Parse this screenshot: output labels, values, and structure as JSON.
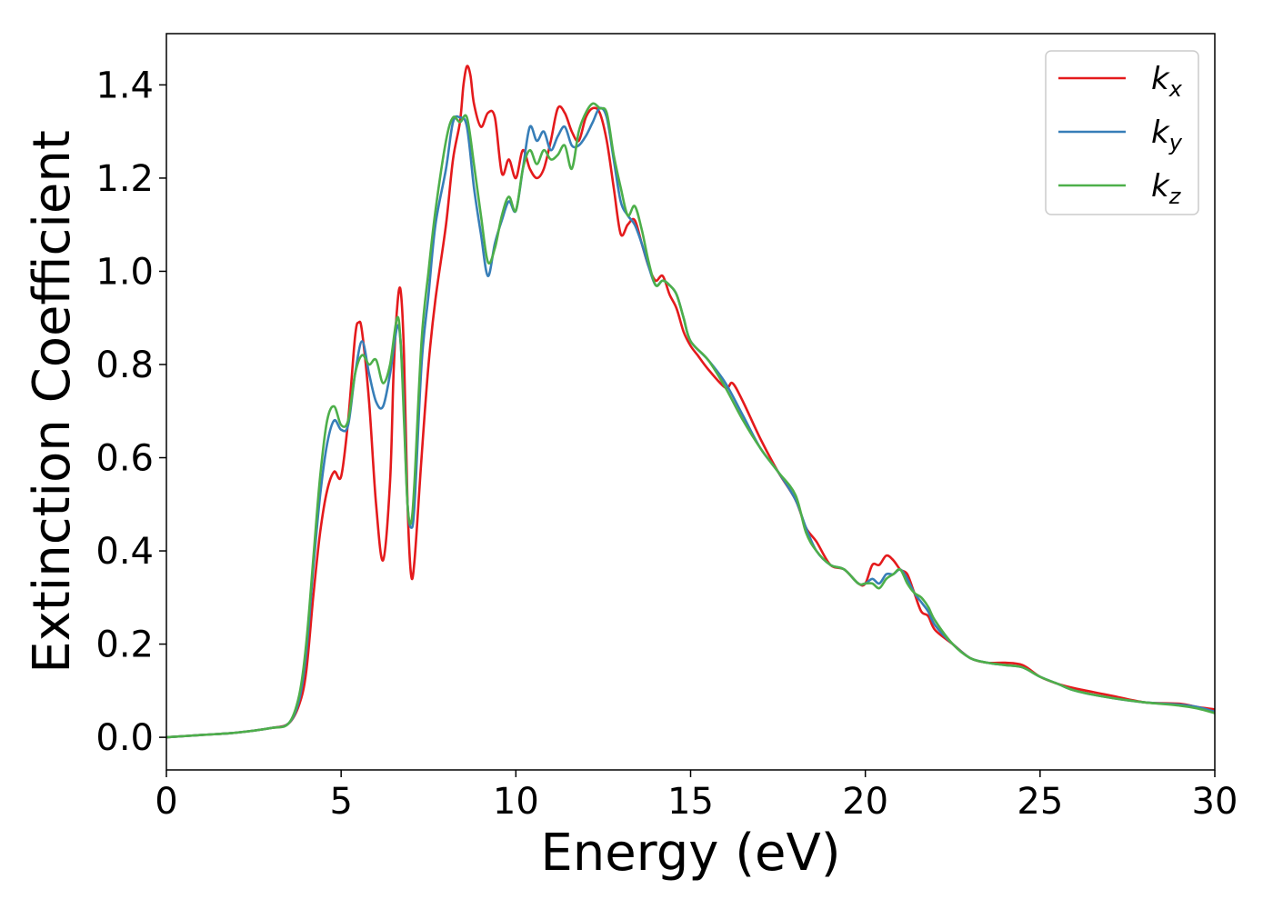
{
  "chart_data": {
    "type": "line",
    "xlabel": "Energy (eV)",
    "ylabel": "Extinction Coefficient",
    "xlim": [
      0,
      30
    ],
    "ylim": [
      -0.07,
      1.51
    ],
    "x_ticks": [
      "0",
      "5",
      "10",
      "15",
      "20",
      "25",
      "30"
    ],
    "y_ticks": [
      "0.0",
      "0.2",
      "0.4",
      "0.6",
      "0.8",
      "1.0",
      "1.2",
      "1.4"
    ],
    "grid": false,
    "legend_position": "top-right",
    "series": [
      {
        "name": "k",
        "subscript": "x",
        "color": "#e41a1c",
        "x": [
          0,
          1,
          2,
          3,
          3.5,
          3.8,
          4.0,
          4.2,
          4.4,
          4.6,
          4.8,
          5.0,
          5.2,
          5.4,
          5.5,
          5.6,
          5.8,
          6.0,
          6.2,
          6.4,
          6.5,
          6.6,
          6.7,
          6.8,
          6.9,
          7.0,
          7.1,
          7.3,
          7.5,
          7.7,
          8.0,
          8.2,
          8.4,
          8.5,
          8.6,
          8.7,
          8.8,
          9.0,
          9.2,
          9.4,
          9.6,
          9.8,
          10.0,
          10.2,
          10.4,
          10.6,
          10.8,
          11.0,
          11.2,
          11.4,
          11.6,
          11.8,
          12.0,
          12.2,
          12.4,
          12.6,
          12.8,
          13.0,
          13.2,
          13.4,
          13.6,
          13.8,
          14.0,
          14.2,
          14.4,
          14.6,
          14.8,
          15.0,
          15.2,
          15.5,
          16.0,
          16.2,
          16.5,
          17.0,
          17.5,
          18.0,
          18.3,
          18.6,
          19.0,
          19.4,
          19.8,
          20.0,
          20.2,
          20.4,
          20.6,
          20.8,
          21.0,
          21.2,
          21.4,
          21.6,
          21.8,
          22.0,
          22.5,
          23.0,
          23.5,
          24.0,
          24.5,
          25.0,
          25.5,
          26.0,
          27.0,
          28.0,
          29.0,
          29.5,
          30.0
        ],
        "values": [
          0.0,
          0.005,
          0.01,
          0.02,
          0.03,
          0.07,
          0.14,
          0.3,
          0.44,
          0.53,
          0.57,
          0.56,
          0.68,
          0.86,
          0.89,
          0.87,
          0.72,
          0.5,
          0.38,
          0.55,
          0.78,
          0.92,
          0.96,
          0.82,
          0.5,
          0.35,
          0.38,
          0.6,
          0.8,
          0.94,
          1.1,
          1.24,
          1.32,
          1.4,
          1.44,
          1.42,
          1.36,
          1.31,
          1.34,
          1.33,
          1.21,
          1.24,
          1.2,
          1.26,
          1.22,
          1.2,
          1.22,
          1.28,
          1.35,
          1.34,
          1.3,
          1.28,
          1.33,
          1.35,
          1.34,
          1.28,
          1.18,
          1.08,
          1.1,
          1.11,
          1.06,
          1.01,
          0.98,
          0.99,
          0.95,
          0.92,
          0.87,
          0.84,
          0.82,
          0.79,
          0.75,
          0.76,
          0.72,
          0.64,
          0.57,
          0.51,
          0.45,
          0.42,
          0.37,
          0.36,
          0.33,
          0.33,
          0.37,
          0.37,
          0.39,
          0.38,
          0.36,
          0.35,
          0.31,
          0.27,
          0.26,
          0.23,
          0.2,
          0.17,
          0.16,
          0.16,
          0.155,
          0.13,
          0.115,
          0.105,
          0.09,
          0.075,
          0.072,
          0.065,
          0.06
        ]
      },
      {
        "name": "k",
        "subscript": "y",
        "color": "#377eb8",
        "x": [
          0,
          1,
          2,
          3,
          3.5,
          3.8,
          4.0,
          4.2,
          4.4,
          4.6,
          4.8,
          5.0,
          5.2,
          5.4,
          5.6,
          5.8,
          6.0,
          6.2,
          6.4,
          6.6,
          6.7,
          6.8,
          6.9,
          7.0,
          7.1,
          7.3,
          7.5,
          7.7,
          8.0,
          8.2,
          8.4,
          8.6,
          8.8,
          9.0,
          9.2,
          9.4,
          9.6,
          9.8,
          10.0,
          10.2,
          10.4,
          10.6,
          10.8,
          11.0,
          11.2,
          11.4,
          11.6,
          11.8,
          12.0,
          12.2,
          12.4,
          12.6,
          12.8,
          13.0,
          13.2,
          13.4,
          13.6,
          13.8,
          14.0,
          14.2,
          14.4,
          14.6,
          14.8,
          15.0,
          15.5,
          16.0,
          16.5,
          17.0,
          17.5,
          18.0,
          18.3,
          18.6,
          19.0,
          19.4,
          19.8,
          20.0,
          20.2,
          20.4,
          20.6,
          20.8,
          21.0,
          21.2,
          21.4,
          21.6,
          21.8,
          22.0,
          22.5,
          23.0,
          23.5,
          24.0,
          24.5,
          25.0,
          25.5,
          26.0,
          27.0,
          28.0,
          29.0,
          29.5,
          30.0
        ],
        "values": [
          0.0,
          0.005,
          0.01,
          0.02,
          0.03,
          0.08,
          0.18,
          0.36,
          0.52,
          0.63,
          0.68,
          0.66,
          0.67,
          0.78,
          0.85,
          0.78,
          0.72,
          0.71,
          0.78,
          0.88,
          0.85,
          0.7,
          0.5,
          0.45,
          0.5,
          0.8,
          0.95,
          1.1,
          1.22,
          1.32,
          1.33,
          1.31,
          1.18,
          1.08,
          0.99,
          1.06,
          1.11,
          1.15,
          1.13,
          1.22,
          1.31,
          1.28,
          1.3,
          1.26,
          1.29,
          1.31,
          1.27,
          1.27,
          1.29,
          1.32,
          1.35,
          1.33,
          1.24,
          1.15,
          1.12,
          1.1,
          1.06,
          1.01,
          0.97,
          0.98,
          0.97,
          0.95,
          0.9,
          0.85,
          0.81,
          0.76,
          0.69,
          0.62,
          0.57,
          0.51,
          0.45,
          0.4,
          0.37,
          0.36,
          0.33,
          0.33,
          0.34,
          0.33,
          0.35,
          0.35,
          0.36,
          0.34,
          0.31,
          0.29,
          0.27,
          0.24,
          0.2,
          0.17,
          0.16,
          0.155,
          0.15,
          0.13,
          0.115,
          0.1,
          0.085,
          0.075,
          0.07,
          0.065,
          0.055
        ]
      },
      {
        "name": "k",
        "subscript": "z",
        "color": "#4daf4a",
        "x": [
          0,
          1,
          2,
          3,
          3.5,
          3.8,
          4.0,
          4.2,
          4.4,
          4.6,
          4.8,
          5.0,
          5.2,
          5.4,
          5.6,
          5.8,
          6.0,
          6.2,
          6.4,
          6.6,
          6.7,
          6.8,
          6.9,
          7.0,
          7.1,
          7.3,
          7.5,
          7.7,
          8.0,
          8.2,
          8.4,
          8.6,
          8.8,
          9.0,
          9.2,
          9.4,
          9.6,
          9.8,
          10.0,
          10.2,
          10.4,
          10.6,
          10.8,
          11.0,
          11.2,
          11.4,
          11.6,
          11.8,
          12.0,
          12.2,
          12.4,
          12.6,
          12.8,
          13.0,
          13.2,
          13.4,
          13.6,
          13.8,
          14.0,
          14.2,
          14.4,
          14.6,
          14.8,
          15.0,
          15.5,
          16.0,
          16.5,
          17.0,
          17.5,
          18.0,
          18.3,
          18.6,
          19.0,
          19.4,
          19.8,
          20.0,
          20.2,
          20.4,
          20.6,
          20.8,
          21.0,
          21.2,
          21.4,
          21.6,
          21.8,
          22.0,
          22.5,
          23.0,
          23.5,
          24.0,
          24.5,
          25.0,
          25.5,
          26.0,
          27.0,
          28.0,
          29.0,
          29.5,
          30.0
        ],
        "values": [
          0.0,
          0.005,
          0.01,
          0.02,
          0.03,
          0.09,
          0.2,
          0.38,
          0.56,
          0.68,
          0.71,
          0.67,
          0.68,
          0.78,
          0.82,
          0.8,
          0.81,
          0.76,
          0.8,
          0.9,
          0.85,
          0.68,
          0.5,
          0.46,
          0.55,
          0.85,
          1.0,
          1.13,
          1.28,
          1.33,
          1.32,
          1.33,
          1.23,
          1.12,
          1.02,
          1.05,
          1.12,
          1.16,
          1.13,
          1.22,
          1.26,
          1.23,
          1.26,
          1.24,
          1.25,
          1.27,
          1.22,
          1.3,
          1.34,
          1.36,
          1.35,
          1.34,
          1.25,
          1.18,
          1.12,
          1.14,
          1.09,
          1.02,
          0.97,
          0.98,
          0.97,
          0.95,
          0.9,
          0.85,
          0.81,
          0.75,
          0.68,
          0.62,
          0.57,
          0.52,
          0.44,
          0.4,
          0.37,
          0.36,
          0.33,
          0.33,
          0.33,
          0.32,
          0.34,
          0.35,
          0.36,
          0.33,
          0.31,
          0.3,
          0.28,
          0.25,
          0.2,
          0.17,
          0.16,
          0.155,
          0.15,
          0.13,
          0.115,
          0.1,
          0.085,
          0.075,
          0.068,
          0.062,
          0.052
        ]
      }
    ]
  }
}
